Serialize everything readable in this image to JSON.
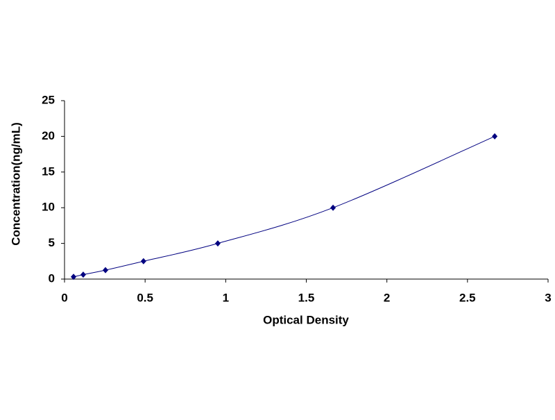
{
  "chart_data": {
    "type": "scatter",
    "x_label": "Optical Density",
    "y_label": "Concentration(ng/mL)",
    "series": [
      {
        "color": "#000080",
        "x": [
          0.056,
          0.116,
          0.254,
          0.49,
          0.951,
          1.666,
          2.669
        ],
        "values": [
          0.312,
          0.625,
          1.25,
          2.5,
          5,
          10,
          20
        ]
      }
    ],
    "xlim": [
      0,
      3
    ],
    "xticks": [
      0,
      0.5,
      1,
      1.5,
      2,
      2.5,
      3
    ],
    "ylim": [
      0,
      25
    ],
    "yticks": [
      0,
      5,
      10,
      15,
      20,
      25
    ],
    "trendline": true
  }
}
